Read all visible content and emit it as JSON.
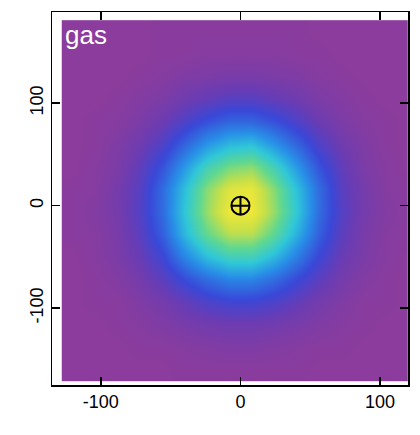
{
  "chart_data": {
    "type": "heatmap",
    "annotations": [
      {
        "text": "gas"
      }
    ],
    "x": [
      -120,
      -104,
      -88,
      -72,
      -56,
      -40,
      -24,
      -8,
      8,
      24,
      40,
      56,
      72,
      88,
      104,
      120
    ],
    "y": [
      170,
      148,
      126,
      104,
      82,
      60,
      38,
      16,
      -6,
      -28,
      -50,
      -72,
      -94,
      -116,
      -138,
      -160
    ],
    "z": [
      [
        1.0,
        1.0,
        1.0,
        1.0,
        1.1,
        1.1,
        1.1,
        1.1,
        1.1,
        1.1,
        1.1,
        1.0,
        1.0,
        1.0,
        1.0,
        1.0
      ],
      [
        1.0,
        1.0,
        1.0,
        1.0,
        1.1,
        1.1,
        1.2,
        1.2,
        1.2,
        1.2,
        1.1,
        1.1,
        1.0,
        1.0,
        1.0,
        1.0
      ],
      [
        1.0,
        1.0,
        1.0,
        1.1,
        1.2,
        1.4,
        1.5,
        1.6,
        1.6,
        1.5,
        1.4,
        1.2,
        1.1,
        1.0,
        1.0,
        1.0
      ],
      [
        1.0,
        1.0,
        1.1,
        1.3,
        1.5,
        1.9,
        2.2,
        2.5,
        2.5,
        2.2,
        1.9,
        1.5,
        1.3,
        1.1,
        1.0,
        1.0
      ],
      [
        1.0,
        1.1,
        1.2,
        1.5,
        2.0,
        2.7,
        3.4,
        3.9,
        3.9,
        3.4,
        2.7,
        2.0,
        1.5,
        1.2,
        1.1,
        1.0
      ],
      [
        1.0,
        1.1,
        1.4,
        1.9,
        2.7,
        3.9,
        5.1,
        5.9,
        6.1,
        5.1,
        3.9,
        2.7,
        1.9,
        1.4,
        1.1,
        1.0
      ],
      [
        1.0,
        1.2,
        1.5,
        2.3,
        3.5,
        5.2,
        6.9,
        7.9,
        8.2,
        6.9,
        5.2,
        3.5,
        2.3,
        1.5,
        1.2,
        1.0
      ],
      [
        1.1,
        1.2,
        1.7,
        2.5,
        4.1,
        6.1,
        8.1,
        9.4,
        9.6,
        8.1,
        6.1,
        4.1,
        2.5,
        1.7,
        1.2,
        1.1
      ],
      [
        1.1,
        1.3,
        1.7,
        2.6,
        4.1,
        6.3,
        8.3,
        9.8,
        9.8,
        8.3,
        6.3,
        4.1,
        2.6,
        1.7,
        1.3,
        1.1
      ],
      [
        1.1,
        1.2,
        1.6,
        2.4,
        3.8,
        5.9,
        7.6,
        8.7,
        8.7,
        7.5,
        5.7,
        3.8,
        2.4,
        1.6,
        1.2,
        1.1
      ],
      [
        1.0,
        1.2,
        1.5,
        2.1,
        3.1,
        4.7,
        6.0,
        6.8,
        6.8,
        5.9,
        4.5,
        3.1,
        2.1,
        1.5,
        1.2,
        1.0
      ],
      [
        1.0,
        1.1,
        1.3,
        1.7,
        2.4,
        3.3,
        4.1,
        4.7,
        4.7,
        4.1,
        3.2,
        2.4,
        1.7,
        1.3,
        1.1,
        1.0
      ],
      [
        1.0,
        1.1,
        1.1,
        1.4,
        1.7,
        2.2,
        2.7,
        3.0,
        3.0,
        2.7,
        2.2,
        1.7,
        1.4,
        1.1,
        1.1,
        1.0
      ],
      [
        1.0,
        1.0,
        1.1,
        1.2,
        1.4,
        1.6,
        1.8,
        1.9,
        1.9,
        1.8,
        1.6,
        1.4,
        1.2,
        1.1,
        1.0,
        1.0
      ],
      [
        1.0,
        1.0,
        1.0,
        1.1,
        1.1,
        1.2,
        1.3,
        1.4,
        1.4,
        1.3,
        1.2,
        1.1,
        1.1,
        1.0,
        1.0,
        1.0
      ],
      [
        1.0,
        1.0,
        1.0,
        1.0,
        1.0,
        1.1,
        1.1,
        1.1,
        1.1,
        1.1,
        1.1,
        1.0,
        1.0,
        1.0,
        1.0,
        1.0
      ]
    ],
    "series": [
      {
        "type": "scatter",
        "x": [
          0
        ],
        "y": [
          0
        ],
        "marker": "circle-cross-open",
        "color": "#000000"
      }
    ],
    "xlim": [
      -135,
      120
    ],
    "xticks": [
      -100,
      0,
      100
    ],
    "ylim": [
      -175,
      189
    ],
    "yticks": [
      -100,
      0,
      100
    ],
    "grid": false
  }
}
